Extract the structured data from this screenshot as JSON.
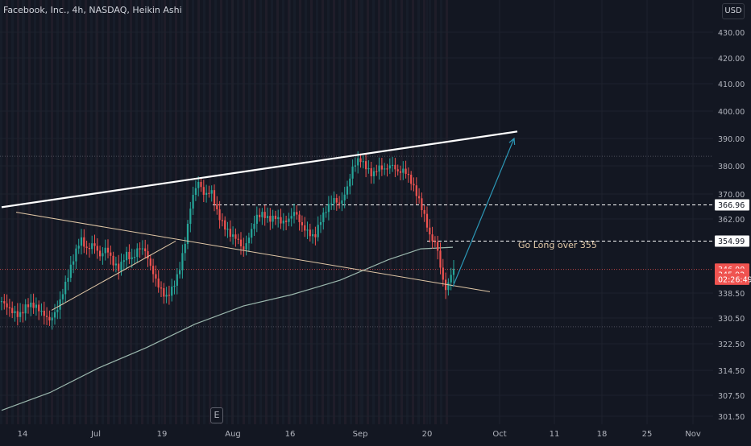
{
  "header": {
    "title": "Facebook, Inc., 4h, NASDAQ, Heikin Ashi"
  },
  "currency": "USD",
  "earnings_marker": "E",
  "annotation": "Go Long over 355",
  "colors": {
    "background": "#131722",
    "up": "#26a69a",
    "down": "#ef5350",
    "trendline": "#ffffff",
    "lower_trendline": "#e0c7a6",
    "ma_line": "#9bb7ad",
    "arrow": "#2c97b6",
    "badge_white": "#ffffff",
    "badge_red": "#ef5350"
  },
  "chart_data": {
    "type": "candlestick",
    "chart_style": "Heikin Ashi",
    "symbol": "Facebook, Inc.",
    "exchange": "NASDAQ",
    "interval": "4h",
    "x_tick_labels": [
      "14",
      "Jul",
      "19",
      "Aug",
      "16",
      "Sep",
      "20",
      "Oct",
      "11",
      "18",
      "25",
      "Nov"
    ],
    "y_tick_labels": [
      "430.00",
      "420.00",
      "410.00",
      "400.00",
      "390.00",
      "380.00",
      "370.00",
      "362.00",
      "338.50",
      "330.50",
      "322.50",
      "314.50",
      "307.50",
      "301.50"
    ],
    "ylim": [
      301.5,
      432
    ],
    "y_scale": "log",
    "price_series": [
      {
        "x": 0,
        "y": 336
      },
      {
        "x": 12,
        "y": 333
      },
      {
        "x": 22,
        "y": 331.5
      },
      {
        "x": 32,
        "y": 335
      },
      {
        "x": 42,
        "y": 334.5
      },
      {
        "x": 52,
        "y": 332
      },
      {
        "x": 60,
        "y": 330
      },
      {
        "x": 70,
        "y": 334
      },
      {
        "x": 80,
        "y": 342
      },
      {
        "x": 90,
        "y": 350
      },
      {
        "x": 98,
        "y": 356
      },
      {
        "x": 106,
        "y": 352
      },
      {
        "x": 114,
        "y": 354.5
      },
      {
        "x": 122,
        "y": 350
      },
      {
        "x": 130,
        "y": 353
      },
      {
        "x": 138,
        "y": 348
      },
      {
        "x": 146,
        "y": 346
      },
      {
        "x": 154,
        "y": 351
      },
      {
        "x": 162,
        "y": 349
      },
      {
        "x": 170,
        "y": 353
      },
      {
        "x": 178,
        "y": 352
      },
      {
        "x": 186,
        "y": 346
      },
      {
        "x": 194,
        "y": 341
      },
      {
        "x": 204,
        "y": 337
      },
      {
        "x": 212,
        "y": 340
      },
      {
        "x": 220,
        "y": 345
      },
      {
        "x": 228,
        "y": 355
      },
      {
        "x": 236,
        "y": 369
      },
      {
        "x": 244,
        "y": 375
      },
      {
        "x": 252,
        "y": 370
      },
      {
        "x": 260,
        "y": 372
      },
      {
        "x": 268,
        "y": 364
      },
      {
        "x": 276,
        "y": 360
      },
      {
        "x": 284,
        "y": 357
      },
      {
        "x": 292,
        "y": 356
      },
      {
        "x": 300,
        "y": 352
      },
      {
        "x": 308,
        "y": 357
      },
      {
        "x": 316,
        "y": 363
      },
      {
        "x": 324,
        "y": 364
      },
      {
        "x": 332,
        "y": 362
      },
      {
        "x": 340,
        "y": 363
      },
      {
        "x": 348,
        "y": 361
      },
      {
        "x": 356,
        "y": 362
      },
      {
        "x": 364,
        "y": 365
      },
      {
        "x": 372,
        "y": 360
      },
      {
        "x": 380,
        "y": 358
      },
      {
        "x": 388,
        "y": 356
      },
      {
        "x": 396,
        "y": 362
      },
      {
        "x": 404,
        "y": 366
      },
      {
        "x": 412,
        "y": 369
      },
      {
        "x": 420,
        "y": 367
      },
      {
        "x": 428,
        "y": 372
      },
      {
        "x": 436,
        "y": 380
      },
      {
        "x": 444,
        "y": 383
      },
      {
        "x": 452,
        "y": 380
      },
      {
        "x": 460,
        "y": 377
      },
      {
        "x": 468,
        "y": 380
      },
      {
        "x": 476,
        "y": 379
      },
      {
        "x": 484,
        "y": 381
      },
      {
        "x": 492,
        "y": 378
      },
      {
        "x": 500,
        "y": 379
      },
      {
        "x": 508,
        "y": 375
      },
      {
        "x": 516,
        "y": 370
      },
      {
        "x": 524,
        "y": 364
      },
      {
        "x": 532,
        "y": 356
      },
      {
        "x": 540,
        "y": 354
      },
      {
        "x": 546,
        "y": 344
      },
      {
        "x": 552,
        "y": 339
      },
      {
        "x": 558,
        "y": 345
      },
      {
        "x": 564,
        "y": 346
      }
    ],
    "moving_average": [
      {
        "x": 0,
        "y": 304
      },
      {
        "x": 60,
        "y": 309
      },
      {
        "x": 120,
        "y": 316
      },
      {
        "x": 180,
        "y": 322
      },
      {
        "x": 240,
        "y": 329
      },
      {
        "x": 300,
        "y": 334.5
      },
      {
        "x": 360,
        "y": 338
      },
      {
        "x": 420,
        "y": 342.5
      },
      {
        "x": 480,
        "y": 349
      },
      {
        "x": 520,
        "y": 352.5
      },
      {
        "x": 560,
        "y": 353
      }
    ],
    "drawings": [
      {
        "type": "trendline",
        "name": "upper-resistance",
        "from": {
          "x": 0,
          "y": 366.2
        },
        "to": {
          "x": 640,
          "y": 392.5
        }
      },
      {
        "type": "trendline",
        "name": "lower-support",
        "from": {
          "x": 18,
          "y": 364.5
        },
        "to": {
          "x": 606,
          "y": 338.9
        }
      },
      {
        "type": "trendline",
        "name": "rising-support",
        "from": {
          "x": 62,
          "y": 333.2
        },
        "to": {
          "x": 216,
          "y": 355
        }
      },
      {
        "type": "arrow",
        "name": "projection",
        "from": {
          "x": 560,
          "y": 340.5
        },
        "to": {
          "x": 636,
          "y": 390
        }
      },
      {
        "type": "hline-dashed",
        "name": "level-366-96",
        "y": 366.96,
        "from_x": 262
      },
      {
        "type": "hline-dashed",
        "name": "level-354-99",
        "y": 354.99,
        "from_x": 528
      },
      {
        "type": "hline-dotted",
        "name": "level-top",
        "y": 383.7
      },
      {
        "type": "hline-dotted",
        "name": "level-bottom",
        "y": 328.2
      },
      {
        "type": "hline-dotted",
        "name": "level-current",
        "y": 345.92,
        "color": "down"
      }
    ],
    "price_labels": [
      {
        "name": "level-366",
        "text": "366.96",
        "y": 366.96,
        "style": "white"
      },
      {
        "name": "level-355",
        "text": "354.99",
        "y": 354.99,
        "style": "white"
      },
      {
        "name": "level-346",
        "text": "346.00",
        "y": 346.0,
        "style": "red"
      },
      {
        "name": "current-price",
        "text": "345.92",
        "y": 344.35,
        "style": "red"
      },
      {
        "name": "countdown",
        "text": "02:26:49",
        "y": 342.8,
        "style": "red"
      }
    ]
  }
}
